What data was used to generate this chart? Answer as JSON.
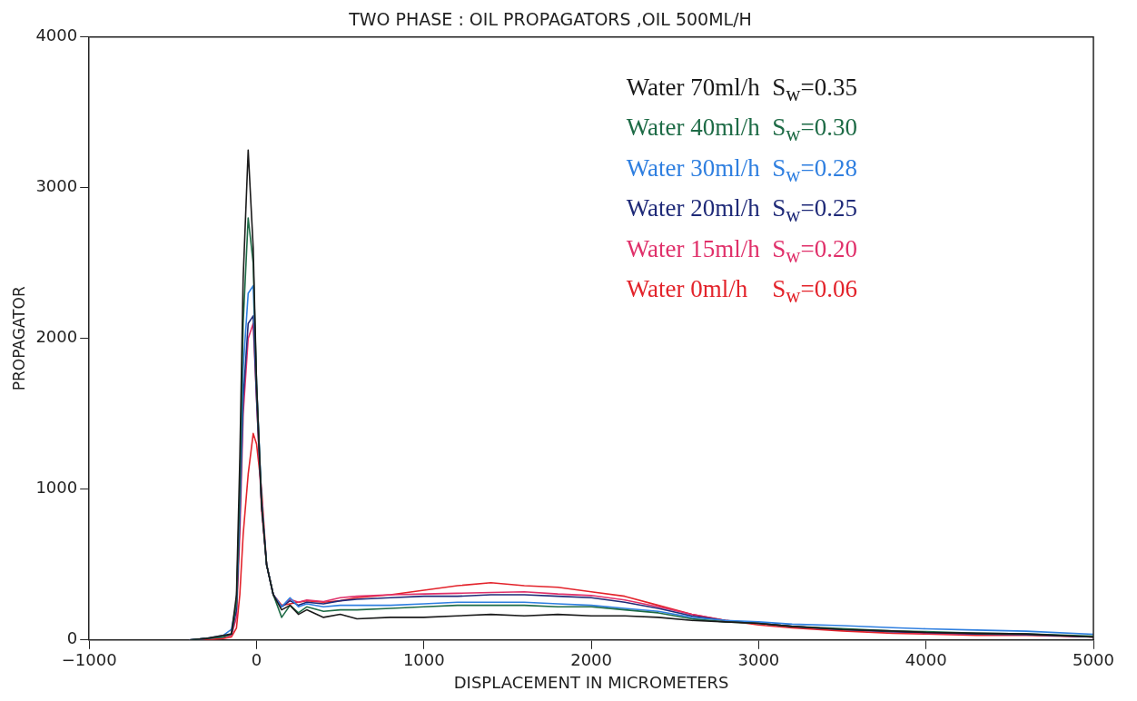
{
  "chart_data": {
    "type": "line",
    "title": "TWO PHASE : OIL PROPAGATORS ,OIL 500ML/H",
    "xlabel": "DISPLACEMENT IN MICROMETERS",
    "ylabel": "PROPAGATOR",
    "x": [
      -400,
      -300,
      -200,
      -150,
      -120,
      -100,
      -80,
      -50,
      -20,
      0,
      30,
      60,
      100,
      150,
      200,
      250,
      300,
      400,
      500,
      600,
      800,
      1000,
      1200,
      1400,
      1600,
      1800,
      2000,
      2200,
      2400,
      2600,
      2800,
      3000,
      3200,
      3500,
      3800,
      4000,
      4300,
      4600,
      5000
    ],
    "series": [
      {
        "name": "Water 70ml/h  S$_{w}$=0.35",
        "color": "#1a1a1a",
        "values": [
          0,
          10,
          30,
          40,
          300,
          1200,
          2400,
          3250,
          2600,
          1700,
          900,
          500,
          300,
          200,
          230,
          170,
          200,
          150,
          170,
          140,
          150,
          150,
          160,
          170,
          160,
          170,
          160,
          160,
          150,
          130,
          120,
          110,
          90,
          70,
          60,
          50,
          45,
          40,
          20
        ]
      },
      {
        "name": "Water 40ml/h  S$_{w}$=0.30",
        "color": "#1e6b46",
        "values": [
          0,
          10,
          20,
          40,
          250,
          1000,
          2100,
          2800,
          2500,
          1700,
          900,
          500,
          300,
          150,
          230,
          180,
          220,
          190,
          200,
          200,
          210,
          220,
          230,
          230,
          230,
          220,
          220,
          200,
          180,
          140,
          120,
          110,
          90,
          75,
          60,
          55,
          45,
          40,
          25
        ]
      },
      {
        "name": "Water 30ml/h  S$_{w}$=0.28",
        "color": "#2f7fe0",
        "values": [
          0,
          10,
          30,
          70,
          250,
          900,
          1800,
          2300,
          2350,
          1700,
          940,
          500,
          300,
          220,
          280,
          220,
          240,
          220,
          230,
          230,
          230,
          240,
          250,
          250,
          250,
          240,
          230,
          210,
          190,
          150,
          130,
          120,
          105,
          95,
          82,
          74,
          66,
          58,
          38
        ]
      },
      {
        "name": "Water 20ml/h  S$_{w}$=0.25",
        "color": "#1f2a78",
        "values": [
          0,
          10,
          20,
          40,
          200,
          800,
          1600,
          2100,
          2150,
          1600,
          900,
          500,
          300,
          220,
          260,
          230,
          250,
          240,
          260,
          270,
          280,
          290,
          290,
          300,
          300,
          290,
          280,
          250,
          210,
          160,
          130,
          110,
          90,
          70,
          55,
          50,
          40,
          35,
          20
        ]
      },
      {
        "name": "Water 15ml/h  S$_{w}$=0.20",
        "color": "#e0306a",
        "values": [
          0,
          10,
          20,
          30,
          150,
          700,
          1500,
          2000,
          2100,
          1600,
          860,
          500,
          300,
          220,
          270,
          250,
          265,
          255,
          280,
          290,
          300,
          305,
          310,
          315,
          320,
          305,
          295,
          265,
          220,
          170,
          130,
          110,
          90,
          70,
          55,
          45,
          40,
          35,
          20
        ]
      },
      {
        "name": "Water 0ml/h    S$_{w}$=0.06",
        "color": "#e3232b",
        "values": [
          0,
          0,
          10,
          20,
          80,
          300,
          700,
          1100,
          1370,
          1300,
          1000,
          500,
          300,
          230,
          240,
          250,
          260,
          250,
          260,
          280,
          300,
          330,
          360,
          380,
          360,
          350,
          320,
          290,
          230,
          170,
          130,
          100,
          80,
          60,
          45,
          40,
          30,
          30,
          20
        ]
      }
    ],
    "xlim": [
      -1000,
      5000
    ],
    "ylim": [
      0,
      4000
    ],
    "xticks": [
      -1000,
      0,
      1000,
      2000,
      3000,
      4000,
      5000
    ],
    "yticks": [
      0,
      1000,
      2000,
      3000,
      4000
    ],
    "legend": "top right",
    "marker": "none",
    "line_style": "solid"
  }
}
